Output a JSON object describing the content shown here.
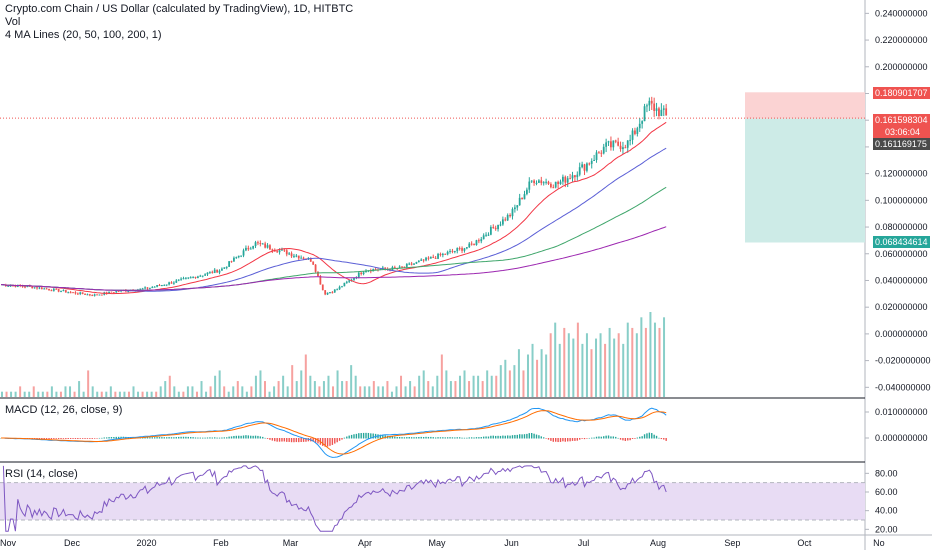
{
  "legend": {
    "title": "Crypto.com Chain / US Dollar (calculated by TradingView), 1D, HITBTC",
    "vol": "Vol",
    "ma": "4 MA Lines (20, 50, 100, 200, 1)",
    "macd": "MACD (12, 26, close, 9)",
    "rsi": "RSI (14, close)"
  },
  "price_tags": {
    "stop": "0.180901707",
    "last": "0.161598304",
    "countdown": "03:06:04",
    "entry": "0.161169175",
    "target": "0.068434614"
  },
  "colors": {
    "up": "#26a69a",
    "down": "#ef5350",
    "ma20": "#f23645",
    "ma50": "#5b5fd6",
    "ma100": "#3fa66b",
    "ma200": "#9c27b0",
    "macd_line": "#2196f3",
    "signal_line": "#ff6d00",
    "rsi_line": "#7e57c2",
    "rsi_band": "#e8dcf4",
    "position_loss": "#fbd3d3",
    "position_profit": "#cdebe7",
    "stop_tag": "#ef5350",
    "last_tag": "#ef5350",
    "entry_tag": "#4a4a4a",
    "target_tag": "#26a69a"
  },
  "chart_data": {
    "type": "candlestick",
    "symbol": "Crypto.com Chain / US Dollar",
    "interval": "1D",
    "x_ticks": [
      "Nov",
      "Dec",
      "2020",
      "Feb",
      "Mar",
      "Apr",
      "May",
      "Jun",
      "Jul",
      "Aug",
      "Sep",
      "Oct",
      "No"
    ],
    "price_axis": {
      "ticks": [
        "0.240000000",
        "0.220000000",
        "0.200000000",
        "0.180000000",
        "0.160000000",
        "0.140000000",
        "0.120000000",
        "0.100000000",
        "0.080000000",
        "0.060000000",
        "0.040000000",
        "0.020000000",
        "0.000000000",
        "-0.020000000",
        "-0.040000000"
      ],
      "range": [
        -0.048,
        0.25
      ]
    },
    "close_series": [
      {
        "date": "2019-11-01",
        "close": 0.037
      },
      {
        "date": "2019-11-15",
        "close": 0.035
      },
      {
        "date": "2019-12-01",
        "close": 0.031
      },
      {
        "date": "2019-12-10",
        "close": 0.029
      },
      {
        "date": "2019-12-20",
        "close": 0.032
      },
      {
        "date": "2020-01-01",
        "close": 0.034
      },
      {
        "date": "2020-01-15",
        "close": 0.04
      },
      {
        "date": "2020-02-01",
        "close": 0.048
      },
      {
        "date": "2020-02-15",
        "close": 0.068
      },
      {
        "date": "2020-03-01",
        "close": 0.06
      },
      {
        "date": "2020-03-10",
        "close": 0.055
      },
      {
        "date": "2020-03-15",
        "close": 0.03
      },
      {
        "date": "2020-03-20",
        "close": 0.033
      },
      {
        "date": "2020-04-01",
        "close": 0.048
      },
      {
        "date": "2020-04-15",
        "close": 0.049
      },
      {
        "date": "2020-05-01",
        "close": 0.058
      },
      {
        "date": "2020-05-15",
        "close": 0.066
      },
      {
        "date": "2020-06-01",
        "close": 0.09
      },
      {
        "date": "2020-06-10",
        "close": 0.116
      },
      {
        "date": "2020-06-20",
        "close": 0.112
      },
      {
        "date": "2020-07-01",
        "close": 0.125
      },
      {
        "date": "2020-07-10",
        "close": 0.14
      },
      {
        "date": "2020-07-20",
        "close": 0.143
      },
      {
        "date": "2020-07-28",
        "close": 0.172
      },
      {
        "date": "2020-08-03",
        "close": 0.165
      },
      {
        "date": "2020-08-05",
        "close": 0.1616
      }
    ],
    "volume": {
      "ticks": [
        "0.020000000",
        "0.000000000",
        "-0.020000000",
        "-0.040000000"
      ],
      "values": [
        1,
        1,
        1,
        1,
        2,
        1,
        1,
        2,
        1,
        1,
        1,
        2,
        1,
        1,
        2,
        2,
        1,
        3,
        1,
        5,
        2,
        1,
        1,
        1,
        2,
        1,
        1,
        1,
        1,
        2,
        1,
        1,
        1,
        1,
        1,
        2,
        3,
        4,
        2,
        1,
        1,
        2,
        2,
        1,
        3,
        1,
        2,
        4,
        5,
        2,
        1,
        2,
        3,
        2,
        1,
        2,
        4,
        5,
        3,
        1,
        2,
        3,
        4,
        2,
        6,
        3,
        5,
        8,
        4,
        3,
        2,
        3,
        4,
        2,
        5,
        3,
        3,
        6,
        4,
        2,
        2,
        2,
        3,
        2,
        2,
        3,
        1,
        2,
        4,
        2,
        3,
        2,
        4,
        5,
        3,
        2,
        4,
        8,
        5,
        3,
        3,
        4,
        5,
        3,
        4,
        4,
        3,
        5,
        4,
        4,
        6,
        7,
        5,
        6,
        9,
        5,
        8,
        10,
        7,
        9,
        8,
        12,
        14,
        10,
        13,
        12,
        11,
        14,
        10,
        12,
        9,
        11,
        12,
        10,
        13,
        11,
        12,
        10,
        14,
        13,
        12,
        15,
        13,
        16,
        14,
        13,
        15
      ]
    },
    "macd": {
      "ticks": [
        "0.010000000",
        "0.000000000"
      ],
      "fast": 12,
      "slow": 26,
      "signal": 9
    },
    "rsi": {
      "ticks": [
        "80.00",
        "60.00",
        "40.00",
        "20.00"
      ],
      "length": 14,
      "band": [
        30,
        70
      ]
    },
    "position": {
      "entry": 0.161169175,
      "stop": 0.180901707,
      "target": 0.068434614
    }
  }
}
